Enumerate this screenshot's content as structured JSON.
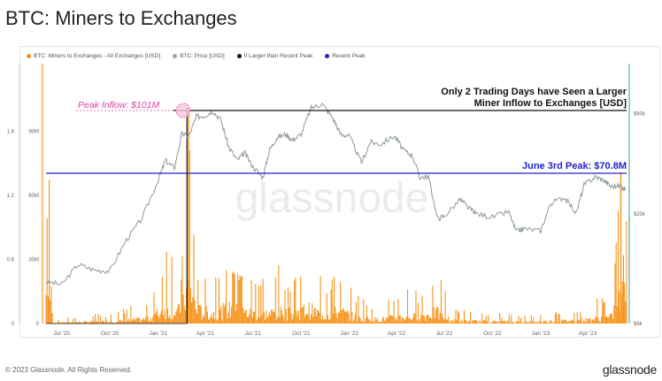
{
  "title": "BTC: Miners to Exchanges",
  "legend": [
    {
      "label": "BTC: Miners to Exchanges - All Exchanges [USD]",
      "color": "#f7931a"
    },
    {
      "label": "BTC: Price [USD]",
      "color": "#9aa3a8"
    },
    {
      "label": "If Larger than Recent Peak",
      "color": "#111111"
    },
    {
      "label": "Recent Peak",
      "color": "#2222cc"
    }
  ],
  "annotations": {
    "peak_inflow": "Peak Inflow: $101M",
    "larger_line1": "Only 2 Trading Days have Seen a Larger",
    "larger_line2": "Miner Inflow to Exchanges [USD]",
    "june_peak": "June 3rd Peak: $70.8M"
  },
  "watermark": "glassnode",
  "footer": {
    "copyright": "© 2023 Glassnode. All Rights Reserved.",
    "brand": "glassnode"
  },
  "chart_data": {
    "type": "line",
    "title": "BTC: Miners to Exchanges",
    "x_ticks": [
      "Jul '20",
      "Oct '20",
      "Jan '21",
      "Apr '21",
      "Jul '21",
      "Oct '21",
      "Jan '22",
      "Apr '22",
      "Jul '22",
      "Oct '22",
      "Jan '23",
      "Apr '23"
    ],
    "y_left_ticks": [
      "0",
      "30M",
      "60M",
      "90M"
    ],
    "y_left_inner_ticks": [
      "0",
      "0.6",
      "1.2",
      "1.8"
    ],
    "y_right_ticks": [
      "$6k",
      "$20k",
      "$60k"
    ],
    "y_left_range": [
      0,
      120000000
    ],
    "y_right_scale": "log",
    "y_right_range": [
      6000,
      100000
    ],
    "recent_peak_usd": 70800000,
    "all_time_peak_usd": 101000000,
    "series": [
      {
        "name": "BTC: Price [USD]",
        "dates": [
          "2020-06-01",
          "2020-07-01",
          "2020-08-01",
          "2020-09-01",
          "2020-10-01",
          "2020-11-01",
          "2020-12-01",
          "2021-01-01",
          "2021-01-15",
          "2021-02-01",
          "2021-02-15",
          "2021-03-01",
          "2021-03-15",
          "2021-04-01",
          "2021-04-15",
          "2021-05-01",
          "2021-05-15",
          "2021-06-01",
          "2021-06-15",
          "2021-07-01",
          "2021-07-20",
          "2021-08-01",
          "2021-08-15",
          "2021-09-01",
          "2021-09-15",
          "2021-10-01",
          "2021-10-20",
          "2021-11-10",
          "2021-12-01",
          "2021-12-15",
          "2022-01-01",
          "2022-01-24",
          "2022-02-10",
          "2022-03-01",
          "2022-03-28",
          "2022-04-15",
          "2022-05-01",
          "2022-05-15",
          "2022-06-01",
          "2022-06-18",
          "2022-07-01",
          "2022-08-01",
          "2022-08-15",
          "2022-09-01",
          "2022-10-01",
          "2022-11-01",
          "2022-11-15",
          "2022-12-01",
          "2023-01-01",
          "2023-01-20",
          "2023-02-15",
          "2023-03-10",
          "2023-03-25",
          "2023-04-15",
          "2023-05-01",
          "2023-05-15",
          "2023-06-03",
          "2023-06-12"
        ],
        "values": [
          9500,
          9200,
          11500,
          10800,
          10700,
          15000,
          19000,
          29000,
          36000,
          33000,
          48000,
          47000,
          58000,
          58800,
          62000,
          56000,
          42000,
          36000,
          39000,
          33500,
          29800,
          40000,
          46000,
          48000,
          45000,
          48000,
          64000,
          67000,
          57000,
          48000,
          47000,
          35000,
          44000,
          43000,
          47000,
          40000,
          38000,
          30000,
          30000,
          19000,
          19500,
          23500,
          21500,
          20000,
          19300,
          20500,
          16500,
          17000,
          16600,
          22500,
          24000,
          20200,
          27500,
          30000,
          29000,
          27000,
          27200,
          26000
        ]
      },
      {
        "name": "BTC: Miners to Exchanges - All Exchanges [USD]",
        "dates": [
          "2020-06",
          "2020-08",
          "2020-10",
          "2020-12",
          "2021-01",
          "2021-02",
          "2021-02-28",
          "2021-03",
          "2021-04",
          "2021-05",
          "2021-06",
          "2021-07",
          "2021-08",
          "2021-09",
          "2021-10",
          "2021-11",
          "2021-12",
          "2022-01",
          "2022-02",
          "2022-03",
          "2022-04",
          "2022-05",
          "2022-06",
          "2022-07",
          "2022-08",
          "2022-10",
          "2022-12",
          "2023-01",
          "2023-03",
          "2023-05",
          "2023-06-03"
        ],
        "values": [
          2000000,
          4000000,
          6000000,
          12000000,
          38000000,
          30000000,
          101000000,
          32000000,
          25000000,
          36000000,
          28000000,
          22000000,
          28000000,
          24000000,
          36000000,
          20000000,
          30000000,
          14000000,
          10000000,
          12000000,
          18000000,
          16000000,
          28000000,
          8000000,
          6000000,
          5000000,
          4000000,
          6000000,
          8000000,
          16000000,
          70800000
        ]
      }
    ]
  }
}
